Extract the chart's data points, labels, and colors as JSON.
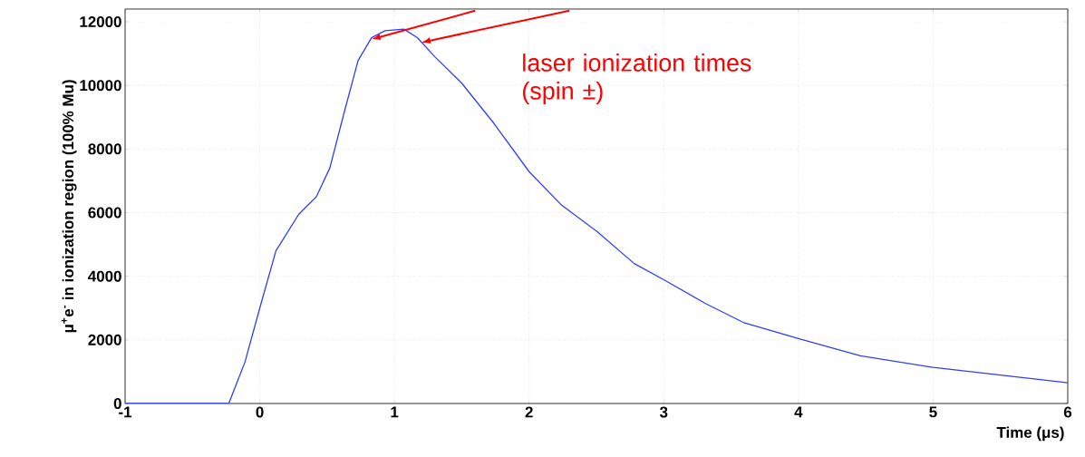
{
  "chart_data": {
    "type": "line",
    "xlabel": "Time (μs)",
    "ylabel": "μ$^{+}$e$^{-}$ in ionization region (100% Mu)",
    "color": "#2f3ff0",
    "line_style": "solid",
    "marker": "none",
    "grid": true,
    "x": [
      -1,
      -0.23,
      -0.11,
      0,
      0.12,
      0.29,
      0.42,
      0.52,
      0.63,
      0.73,
      0.83,
      0.93,
      1.07,
      1.17,
      1.3,
      1.5,
      1.74,
      2,
      2.24,
      2.51,
      2.78,
      3,
      3.32,
      3.59,
      4,
      4.46,
      5,
      5.47,
      6
    ],
    "values": [
      0,
      0,
      1300,
      3000,
      4800,
      5950,
      6500,
      7400,
      9200,
      10780,
      11500,
      11720,
      11770,
      11500,
      10900,
      10070,
      8800,
      7290,
      6240,
      5390,
      4400,
      3890,
      3120,
      2550,
      2040,
      1500,
      1135,
      910,
      650
    ],
    "xlim": [
      -1,
      6
    ],
    "ylim": [
      0,
      12400
    ],
    "xticks": [
      -1,
      0,
      1,
      2,
      3,
      4,
      5,
      6
    ],
    "yticks": [
      0,
      2000,
      4000,
      6000,
      8000,
      10000,
      12000
    ],
    "annotations": [
      "laser ionization times (spin ±)"
    ]
  }
}
